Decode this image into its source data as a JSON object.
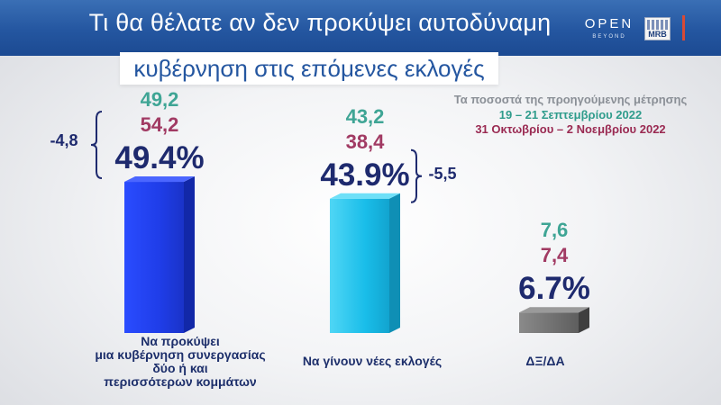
{
  "header": {
    "title_line1": "Τι θα θέλατε αν δεν προκύψει αυτοδύναμη",
    "title_line2": "κυβέρνηση στις επόμενες  εκλογές",
    "logo_open": "OPEN",
    "logo_beyond": "BEYOND",
    "logo_mrb": "MRB"
  },
  "legend": {
    "title": "Τα ποσοστά της προηγούμενης μέτρησης",
    "line1": "19 –  21 Σεπτεμβρίου 2022",
    "line2": "31 Οκτωβρίου –  2 Νοεμβρίου 2022"
  },
  "colors": {
    "bar1": "#1f3de8",
    "bar2": "#19bde9",
    "bar3": "#6e6e6e",
    "prev1": "#3fa595",
    "prev2": "#a13a63",
    "main": "#1e2a6e"
  },
  "chart_data": {
    "type": "bar",
    "categories": [
      "Να προκύψει μια κυβέρνηση συνεργασίας δύο ή και περισσότερων κομμάτων",
      "Να γίνουν νέες εκλογές",
      "ΔΞ/ΔΑ"
    ],
    "category_lines": [
      [
        "Να προκύψει",
        "μια κυβέρνηση συνεργασίας",
        "δύο ή και",
        "περισσότερων κομμάτων"
      ],
      [
        "Να γίνουν νέες εκλογές"
      ],
      [
        "ΔΞ/ΔΑ"
      ]
    ],
    "series": [
      {
        "values": [
          49.4,
          43.9,
          6.7
        ]
      }
    ],
    "value_labels": [
      "49.4%",
      "43.9%",
      "6.7%"
    ],
    "previous_1": [
      "49,2",
      "43,2",
      "7,6"
    ],
    "previous_2": [
      "54,2",
      "38,4",
      "7,4"
    ],
    "differences": [
      "-4,8",
      "-5,5",
      ""
    ],
    "ylim": [
      0,
      100
    ]
  }
}
